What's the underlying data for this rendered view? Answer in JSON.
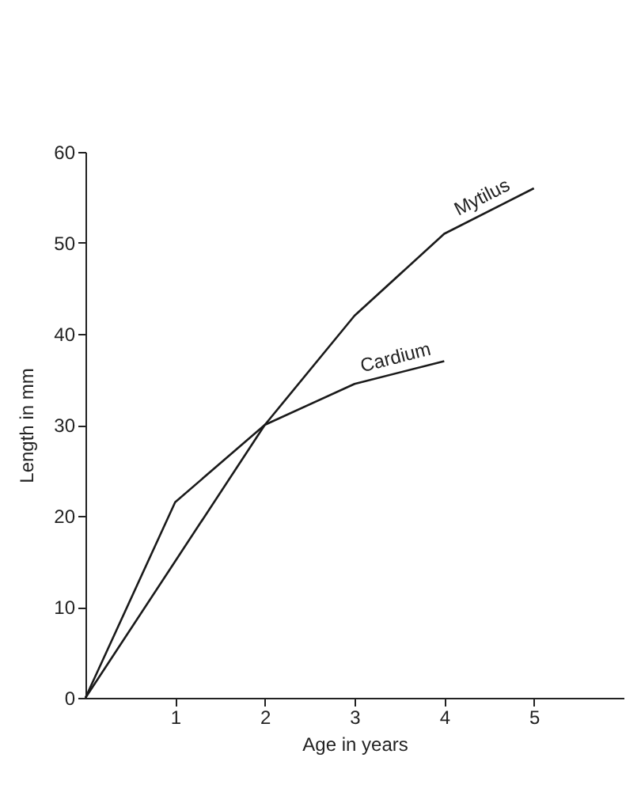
{
  "chart_data": {
    "type": "line",
    "xlabel": "Age in years",
    "ylabel": "Length in mm",
    "x": [
      0,
      1,
      2,
      3,
      4,
      5
    ],
    "series": [
      {
        "name": "Mytilus",
        "color": "#1a1a1a",
        "values": [
          0,
          15,
          30,
          42,
          51,
          56
        ]
      },
      {
        "name": "Cardium",
        "color": "#1a1a1a",
        "values": [
          0,
          21.5,
          30,
          34.5,
          37,
          null
        ]
      }
    ],
    "xlim": [
      0,
      6
    ],
    "xticks": [
      1,
      2,
      3,
      4,
      5
    ],
    "ylim": [
      0,
      60
    ],
    "yticks": [
      0,
      10,
      20,
      30,
      40,
      50,
      60
    ],
    "grid": false,
    "legend": false,
    "marker": "none",
    "line_style": "solid"
  }
}
